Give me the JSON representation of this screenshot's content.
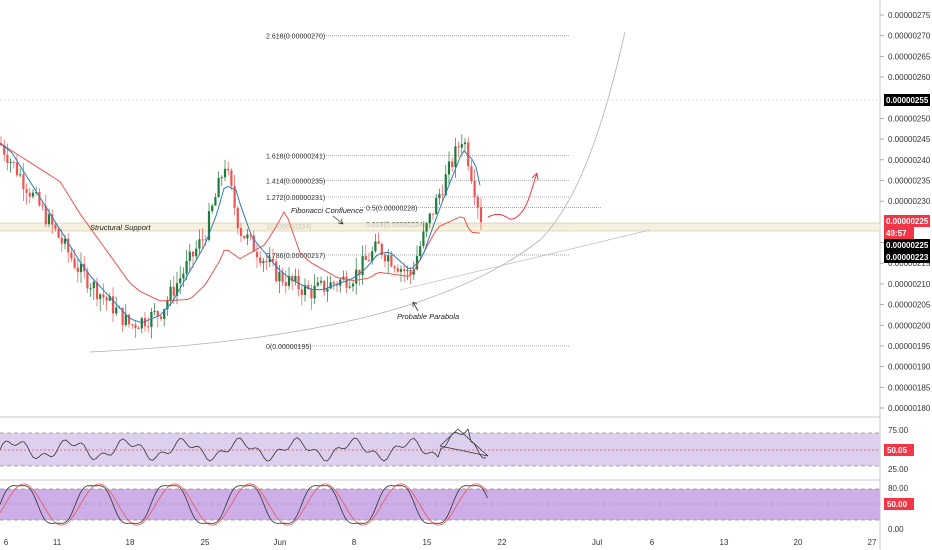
{
  "colors": {
    "up": "#26a69a",
    "up_body": "#1e7b3a",
    "down": "#ef5350",
    "ma_fast": "#2e7db5",
    "ma_slow": "#ef5350",
    "fib": "#9e9e9e",
    "band": "#d7c6ea",
    "band_stoch": "#c7a3e6",
    "price_badge": "#000000",
    "price_badge_red": "#f23645",
    "grid_text": "#333333"
  },
  "price_axis": {
    "labels": [
      "0.00000275",
      "0.00000270",
      "0.00000265",
      "0.00000260",
      "0.00000250",
      "0.00000245",
      "0.00000240",
      "0.00000235",
      "0.00000230",
      "0.00000220",
      "0.00000215",
      "0.00000210",
      "0.00000205",
      "0.00000200",
      "0.00000195",
      "0.00000190",
      "0.00000185",
      "0.00000180"
    ],
    "badges": [
      {
        "text": "0.00000255",
        "style": "dark"
      },
      {
        "text": "0.00000225",
        "style": "red"
      },
      {
        "text": "49:57",
        "style": "red_small"
      },
      {
        "text": "0.00000225",
        "style": "dark"
      },
      {
        "text": "0.00000223",
        "style": "dark"
      }
    ]
  },
  "time_axis": {
    "labels": [
      "6",
      "11",
      "18",
      "25",
      "Jun",
      "8",
      "15",
      "22",
      "Jul",
      "6",
      "13",
      "20",
      "27"
    ]
  },
  "annotations": {
    "structural_support": "Structural Support",
    "fib_confluence": "Fibonacci Confluence",
    "probable_parabola": "Probable Parabola"
  },
  "fib_levels": [
    {
      "label": "2.618(0.00000270)",
      "price": 2.7e-06
    },
    {
      "label": "1.618(0.00000241)",
      "price": 2.41e-06
    },
    {
      "label": "1.414(0.00000235)",
      "price": 2.35e-06
    },
    {
      "label": "1.272(0.00000231)",
      "price": 2.31e-06
    },
    {
      "label": "1(0.00000224)",
      "price": 2.24e-06
    },
    {
      "label": "0.786(0.00000217)",
      "price": 2.17e-06
    },
    {
      "label": "0(0.00000195)",
      "price": 1.95e-06
    }
  ],
  "fib_levels_2": [
    {
      "label": "0.5(0.00000228)",
      "price": 2.28e-06
    },
    {
      "label": "0.618(0.00000224)",
      "price": 2.24e-06
    }
  ],
  "rsi": {
    "axis_labels": [
      "75.00",
      "25.00"
    ],
    "value_badge": "50.05",
    "band": [
      25,
      75
    ]
  },
  "stoch": {
    "axis_labels": [
      "80.00",
      "0.00"
    ],
    "value_badge": "50.00",
    "band": [
      20,
      80
    ]
  },
  "chart_data": {
    "type": "candlestick",
    "title": "",
    "ylim": [
      1.78e-06,
      2.77e-06
    ],
    "x_ticks": [
      "6",
      "11",
      "18",
      "25",
      "Jun",
      "8",
      "15",
      "22",
      "Jul",
      "6",
      "13",
      "20",
      "27"
    ],
    "approx_close_path": [
      {
        "x": "6",
        "y": 2.44e-06
      },
      {
        "x": "11",
        "y": 2.22e-06
      },
      {
        "x": "14",
        "y": 2.13e-06
      },
      {
        "x": "18",
        "y": 2e-06
      },
      {
        "x": "22",
        "y": 2.03e-06
      },
      {
        "x": "25",
        "y": 2.22e-06
      },
      {
        "x": "27",
        "y": 2.39e-06
      },
      {
        "x": "28",
        "y": 2.23e-06
      },
      {
        "x": "Jun",
        "y": 2.12e-06
      },
      {
        "x": "3",
        "y": 2.08e-06
      },
      {
        "x": "8",
        "y": 2.12e-06
      },
      {
        "x": "11",
        "y": 2.19e-06
      },
      {
        "x": "14",
        "y": 2.12e-06
      },
      {
        "x": "16",
        "y": 2.26e-06
      },
      {
        "x": "18",
        "y": 2.46e-06
      },
      {
        "x": "20",
        "y": 2.25e-06
      }
    ],
    "last_price": 2.25e-06
  }
}
